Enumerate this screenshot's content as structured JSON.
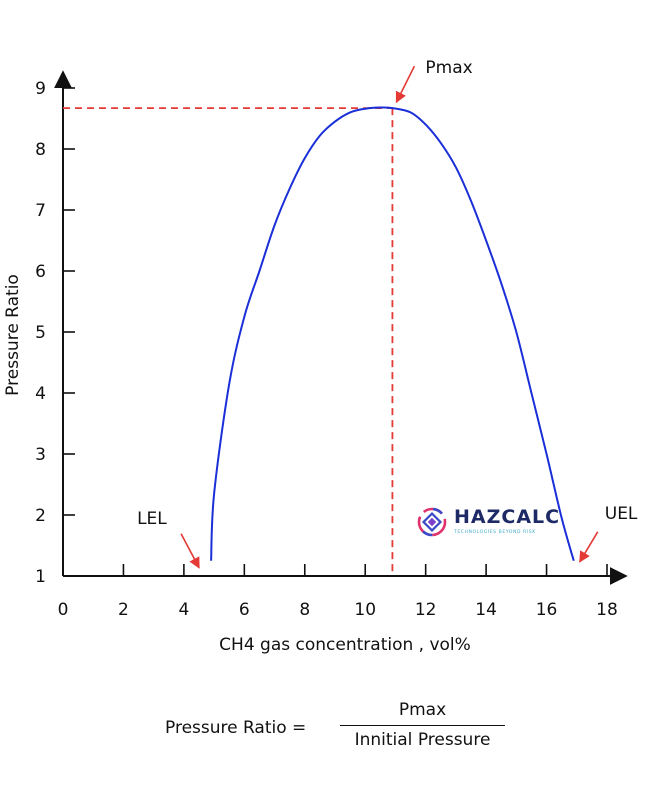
{
  "chart_data": {
    "type": "line",
    "xlabel": "CH4 gas concentration , vol%",
    "ylabel": "Pressure Ratio",
    "xlim": [
      0,
      18
    ],
    "ylim": [
      1,
      9
    ],
    "x_ticks": [
      "0",
      "2",
      "4",
      "6",
      "8",
      "10",
      "12",
      "14",
      "16",
      "18"
    ],
    "y_ticks": [
      "1",
      "2",
      "3",
      "4",
      "5",
      "6",
      "7",
      "8",
      "9"
    ],
    "grid": false,
    "colors": {
      "curve": "#1a2fd8",
      "reference": "#e53935",
      "arrow": "#e53935"
    },
    "series": [
      {
        "x": [
          4.9,
          5.0,
          5.5,
          6.0,
          6.5,
          7.0,
          7.5,
          8.0,
          8.5,
          9.0,
          9.5,
          10.0,
          10.5,
          10.9,
          11.5,
          12.0,
          12.5,
          13.0,
          13.5,
          14.0,
          14.5,
          15.0,
          15.5,
          16.0,
          16.5,
          16.9
        ],
        "y": [
          1.25,
          2.35,
          4.15,
          5.25,
          6.0,
          6.75,
          7.35,
          7.85,
          8.22,
          8.45,
          8.6,
          8.66,
          8.68,
          8.67,
          8.6,
          8.4,
          8.1,
          7.7,
          7.15,
          6.5,
          5.8,
          5.0,
          4.0,
          3.0,
          1.95,
          1.25
        ]
      }
    ],
    "annotations": {
      "pmax": {
        "label": "Pmax",
        "x": 10.9,
        "y": 8.67
      },
      "lel": {
        "label": "LEL",
        "x": 4.9,
        "y": 1.2
      },
      "uel": {
        "label": "UEL",
        "x": 16.9,
        "y": 1.2
      }
    }
  },
  "logo": {
    "brand": "HAZCALC",
    "tagline": "TECHNOLOGIES BEYOND RISK"
  },
  "formula": {
    "lhs": "Pressure Ratio =",
    "numerator": "Pmax",
    "denominator": "Innitial Pressure"
  }
}
